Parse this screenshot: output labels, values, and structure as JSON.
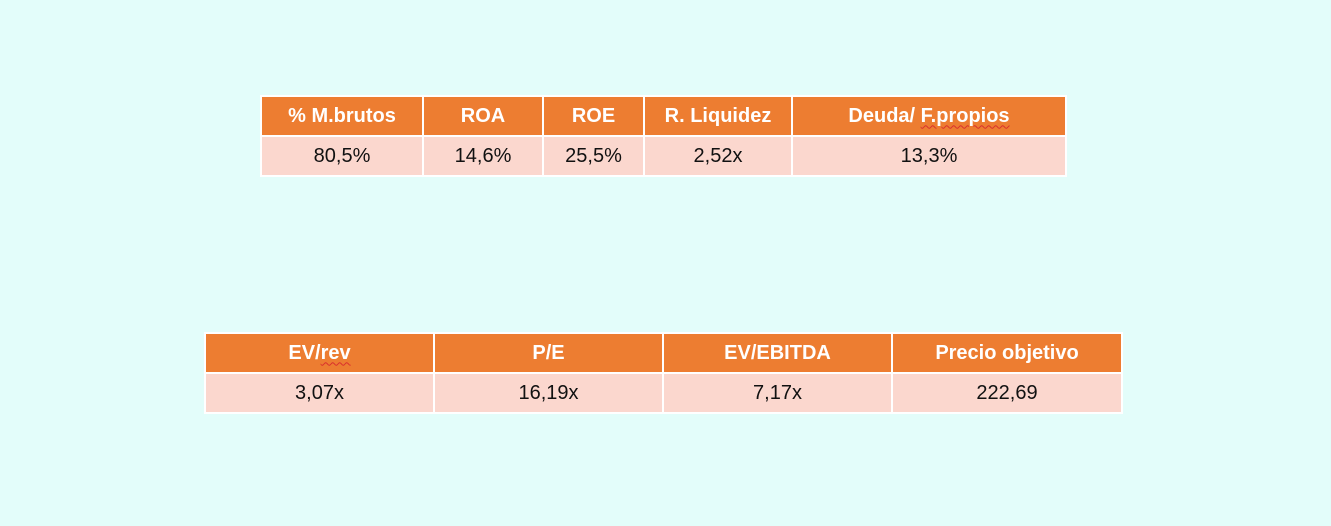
{
  "ratios_table": {
    "headers": [
      "% M.brutos",
      "ROA",
      "ROE",
      "R. Liquidez"
    ],
    "last_header_prefix": "Deuda/ ",
    "last_header_flagged": "F.propios",
    "values": [
      "80,5%",
      "14,6%",
      "25,5%",
      "2,52x",
      "13,3%"
    ]
  },
  "valuation_table": {
    "first_header_prefix": "EV/",
    "first_header_flagged": "rev",
    "headers": [
      "P/E",
      "EV/EBITDA",
      "Precio objetivo"
    ],
    "values": [
      "3,07x",
      "16,19x",
      "7,17x",
      "222,69"
    ]
  },
  "colors": {
    "background": "#e3fdfa",
    "header_fill": "#ed7d31",
    "value_fill": "#fbd7ce",
    "header_text": "#ffffff",
    "spellcheck_underline": "#d9302c"
  }
}
